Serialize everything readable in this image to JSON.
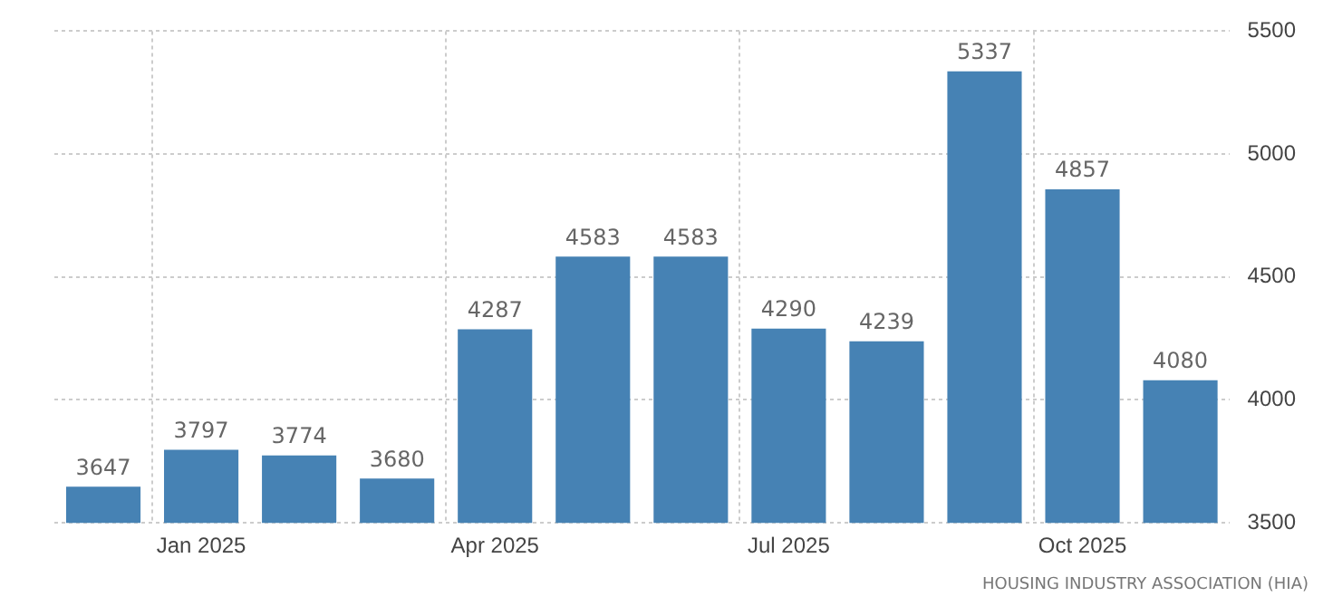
{
  "chart_data": {
    "type": "bar",
    "categories": [
      null,
      "Jan 2025",
      null,
      null,
      "Apr 2025",
      null,
      null,
      "Jul 2025",
      null,
      null,
      "Oct 2025",
      null
    ],
    "values": [
      3647,
      3797,
      3774,
      3680,
      4287,
      4583,
      4583,
      4290,
      4239,
      5337,
      4857,
      4080
    ],
    "color": "#4682b4",
    "ylim": [
      3500,
      5500
    ],
    "yticks": [
      3500,
      4000,
      4500,
      5000,
      5500
    ],
    "grid": true,
    "data_labels": true,
    "legend": false,
    "annotations": [
      "HOUSING INDUSTRY ASSOCIATION (HIA)"
    ]
  }
}
